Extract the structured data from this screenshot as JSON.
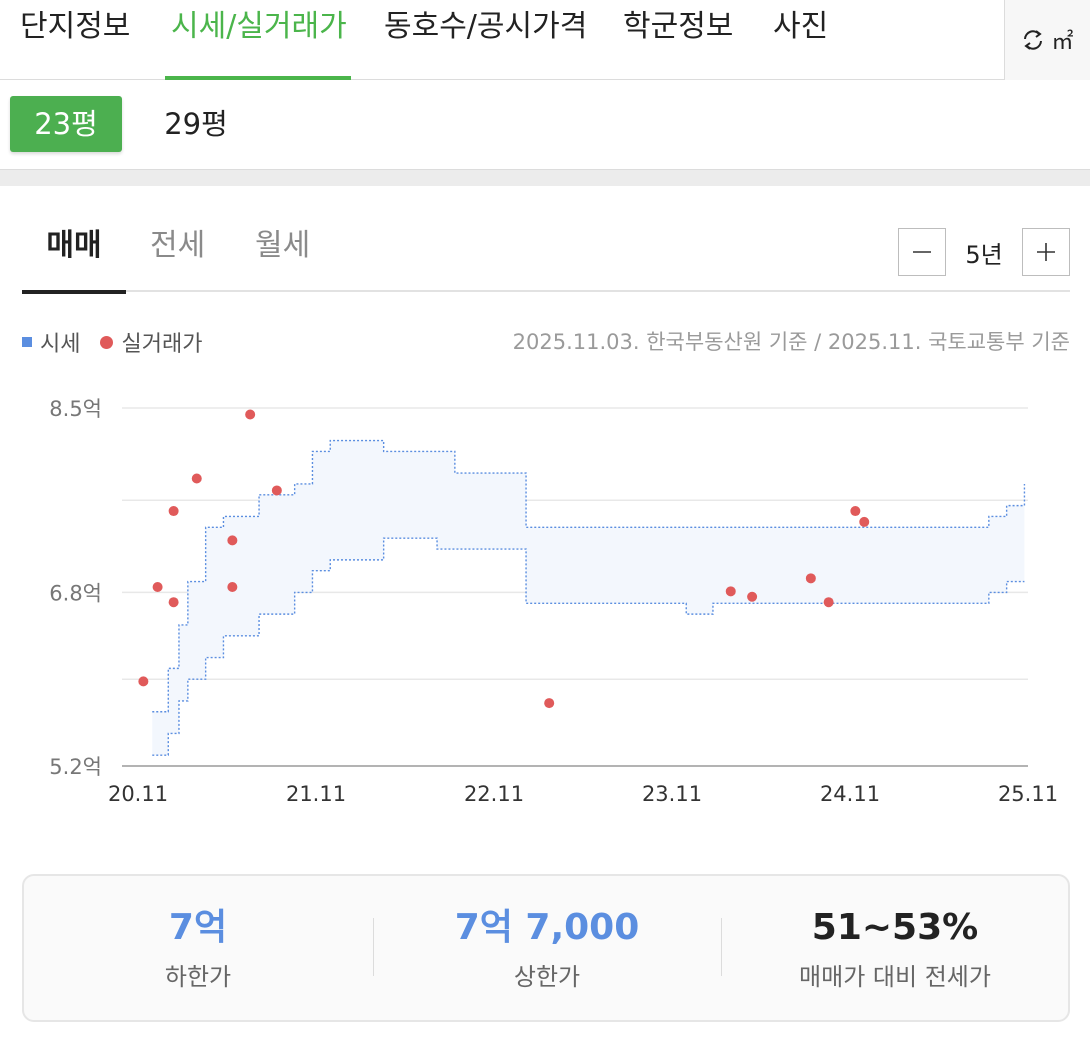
{
  "top_tabs": [
    {
      "label": "단지정보"
    },
    {
      "label": "시세/실거래가"
    },
    {
      "label": "동호수/공시가격"
    },
    {
      "label": "학군정보"
    },
    {
      "label": "사진"
    }
  ],
  "unit_toggle": {
    "label": "㎡",
    "icon": "refresh-icon"
  },
  "sizes": [
    {
      "label": "23평",
      "selected": true
    },
    {
      "label": "29평",
      "selected": false
    }
  ],
  "deal_tabs": [
    {
      "label": "매매",
      "selected": true
    },
    {
      "label": "전세",
      "selected": false
    },
    {
      "label": "월세",
      "selected": false
    }
  ],
  "period": {
    "label": "5년",
    "minus_icon": "minus-icon",
    "plus_icon": "plus-icon"
  },
  "legend": {
    "market_price": "시세",
    "actual_price": "실거래가"
  },
  "source_note": "2025.11.03. 한국부동산원 기준 / 2025.11. 국토교통부 기준",
  "colors": {
    "accent_green": "#4caf50",
    "market_blue": "#5b8ee0",
    "deal_red": "#e05a5a",
    "band_fill": "#f3f7fd"
  },
  "chart_data": {
    "type": "scatter",
    "title": "",
    "y_unit": "억",
    "ylim": [
      5.2,
      8.5
    ],
    "y_ticks": [
      5.2,
      6.8,
      8.5
    ],
    "y_tick_labels": [
      "5.2억",
      "6.8억",
      "8.5억"
    ],
    "xlim": [
      2020.83,
      2025.92
    ],
    "x_ticks": [
      2020.92,
      2021.92,
      2022.92,
      2023.92,
      2024.92,
      2025.92
    ],
    "x_tick_labels": [
      "20.11",
      "21.11",
      "22.11",
      "23.11",
      "24.11",
      "25.11"
    ],
    "grid": true,
    "series": [
      {
        "name": "시세",
        "kind": "band",
        "x": [
          2021.0,
          2021.09,
          2021.15,
          2021.2,
          2021.3,
          2021.4,
          2021.6,
          2021.8,
          2021.9,
          2022.0,
          2022.3,
          2022.6,
          2022.7,
          2023.1,
          2023.15,
          2023.6,
          2024.0,
          2024.15,
          2024.4,
          2024.5,
          2025.0,
          2025.7,
          2025.8,
          2025.9
        ],
        "lower": [
          5.3,
          5.5,
          5.8,
          6.0,
          6.2,
          6.4,
          6.6,
          6.8,
          7.0,
          7.1,
          7.3,
          7.2,
          7.2,
          6.7,
          6.7,
          6.7,
          6.6,
          6.7,
          6.7,
          6.7,
          6.7,
          6.8,
          6.9,
          6.9
        ],
        "upper": [
          5.7,
          6.1,
          6.5,
          6.9,
          7.4,
          7.5,
          7.7,
          7.8,
          8.1,
          8.2,
          8.1,
          8.1,
          7.9,
          7.4,
          7.4,
          7.4,
          7.4,
          7.4,
          7.4,
          7.4,
          7.4,
          7.5,
          7.6,
          7.8
        ]
      },
      {
        "name": "실거래가",
        "kind": "points",
        "x": [
          2020.95,
          2021.03,
          2021.12,
          2021.12,
          2021.25,
          2021.45,
          2021.45,
          2021.55,
          2021.7,
          2023.23,
          2024.25,
          2024.37,
          2024.7,
          2024.8,
          2024.95,
          2025.0
        ],
        "y": [
          5.98,
          6.85,
          6.71,
          7.55,
          7.85,
          7.28,
          6.85,
          8.44,
          7.74,
          5.78,
          6.81,
          6.76,
          6.93,
          6.71,
          7.55,
          7.45
        ]
      }
    ]
  },
  "summary": [
    {
      "value": "7억",
      "label": "하한가",
      "color": "blue"
    },
    {
      "value": "7억 7,000",
      "label": "상한가",
      "color": "blue"
    },
    {
      "value": "51~53%",
      "label": "매매가 대비 전세가",
      "color": "dark"
    }
  ]
}
